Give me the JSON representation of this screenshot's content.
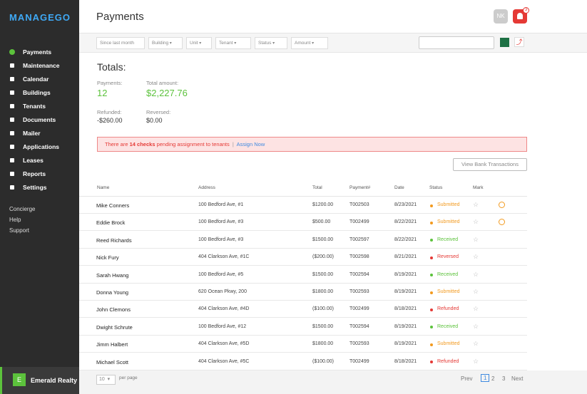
{
  "sidebar": {
    "logo": "MANAGEGO",
    "nav": [
      "Payments",
      "Maintenance",
      "Calendar",
      "Buildings",
      "Tenants",
      "Documents",
      "Mailer",
      "Applications",
      "Leases",
      "Reports",
      "Settings"
    ],
    "links": [
      "Concierge",
      "Help",
      "Support"
    ],
    "company": {
      "initial": "E",
      "name": "Emerald Realty"
    }
  },
  "header": {
    "title": "Payments",
    "user_initials": "NK",
    "notifications": "3"
  },
  "filters": [
    "Since last month",
    "Building",
    "Unit",
    "Tenant",
    "Status",
    "Amount"
  ],
  "totals": {
    "title": "Totals:",
    "payments_label": "Payments:",
    "payments": "12",
    "amount_label": "Total amount:",
    "amount": "$2,227.76",
    "refunded_label": "Refunded:",
    "refunded": "-$260.00",
    "reversed_label": "Reversed:",
    "reversed": "$0.00"
  },
  "alert": {
    "before": "There are",
    "count": "14 checks",
    "after": "pending assignment to tenants",
    "link": "Assign Now"
  },
  "bank_button": "View Bank Transactions",
  "table": {
    "columns": [
      "Name",
      "Address",
      "Total",
      "Payment#",
      "Date",
      "Status",
      "Mark"
    ],
    "rows": [
      {
        "name": "Mike Conners",
        "address": "100 Bedford Ave, #1",
        "total": "$1200.00",
        "payment": "T002503",
        "date": "8/23/2021",
        "status": "Submitted",
        "status_color": "#f29a1f"
      },
      {
        "name": "Eddie Brock",
        "address": "100 Bedford Ave, #3",
        "total": "$500.00",
        "payment": "T002499",
        "date": "8/22/2021",
        "status": "Submitted",
        "status_color": "#f29a1f"
      },
      {
        "name": "Reed Richards",
        "address": "100 Bedford Ave, #3",
        "total": "$1500.00",
        "payment": "T002597",
        "date": "8/22/2021",
        "status": "Received",
        "status_color": "#5cc23c"
      },
      {
        "name": "Nick Fury",
        "address": "404 Clarkson Ave, #1C",
        "total": "($200.00)",
        "payment": "T002598",
        "date": "8/21/2021",
        "status": "Reversed",
        "status_color": "#e53935"
      },
      {
        "name": "Sarah Hwang",
        "address": "100 Bedford Ave, #5",
        "total": "$1500.00",
        "payment": "T002594",
        "date": "8/19/2021",
        "status": "Received",
        "status_color": "#5cc23c"
      },
      {
        "name": "Donna Young",
        "address": "620 Ocean Pkwy, 200",
        "total": "$1800.00",
        "payment": "T002593",
        "date": "8/19/2021",
        "status": "Submitted",
        "status_color": "#f29a1f"
      },
      {
        "name": "John Clemons",
        "address": "404 Clarkson Ave, #4D",
        "total": "($100.00)",
        "payment": "T002499",
        "date": "8/18/2021",
        "status": "Refunded",
        "status_color": "#e53935"
      },
      {
        "name": "Dwight Schrute",
        "address": "100 Bedford Ave, #12",
        "total": "$1500.00",
        "payment": "T002594",
        "date": "8/19/2021",
        "status": "Received",
        "status_color": "#5cc23c"
      },
      {
        "name": "Jimm Halbert",
        "address": "404 Clarkson Ave, #5D",
        "total": "$1800.00",
        "payment": "T002593",
        "date": "8/19/2021",
        "status": "Submitted",
        "status_color": "#f29a1f"
      },
      {
        "name": "Michael Scott",
        "address": "404 Clarkson Ave, #5C",
        "total": "($100.00)",
        "payment": "T002499",
        "date": "8/18/2021",
        "status": "Refunded",
        "status_color": "#e53935"
      }
    ]
  },
  "pagination": {
    "per_page": "10",
    "per_page_label": "per page",
    "prev": "Prev",
    "pages": [
      "1",
      "2",
      "3"
    ],
    "next": "Next"
  }
}
